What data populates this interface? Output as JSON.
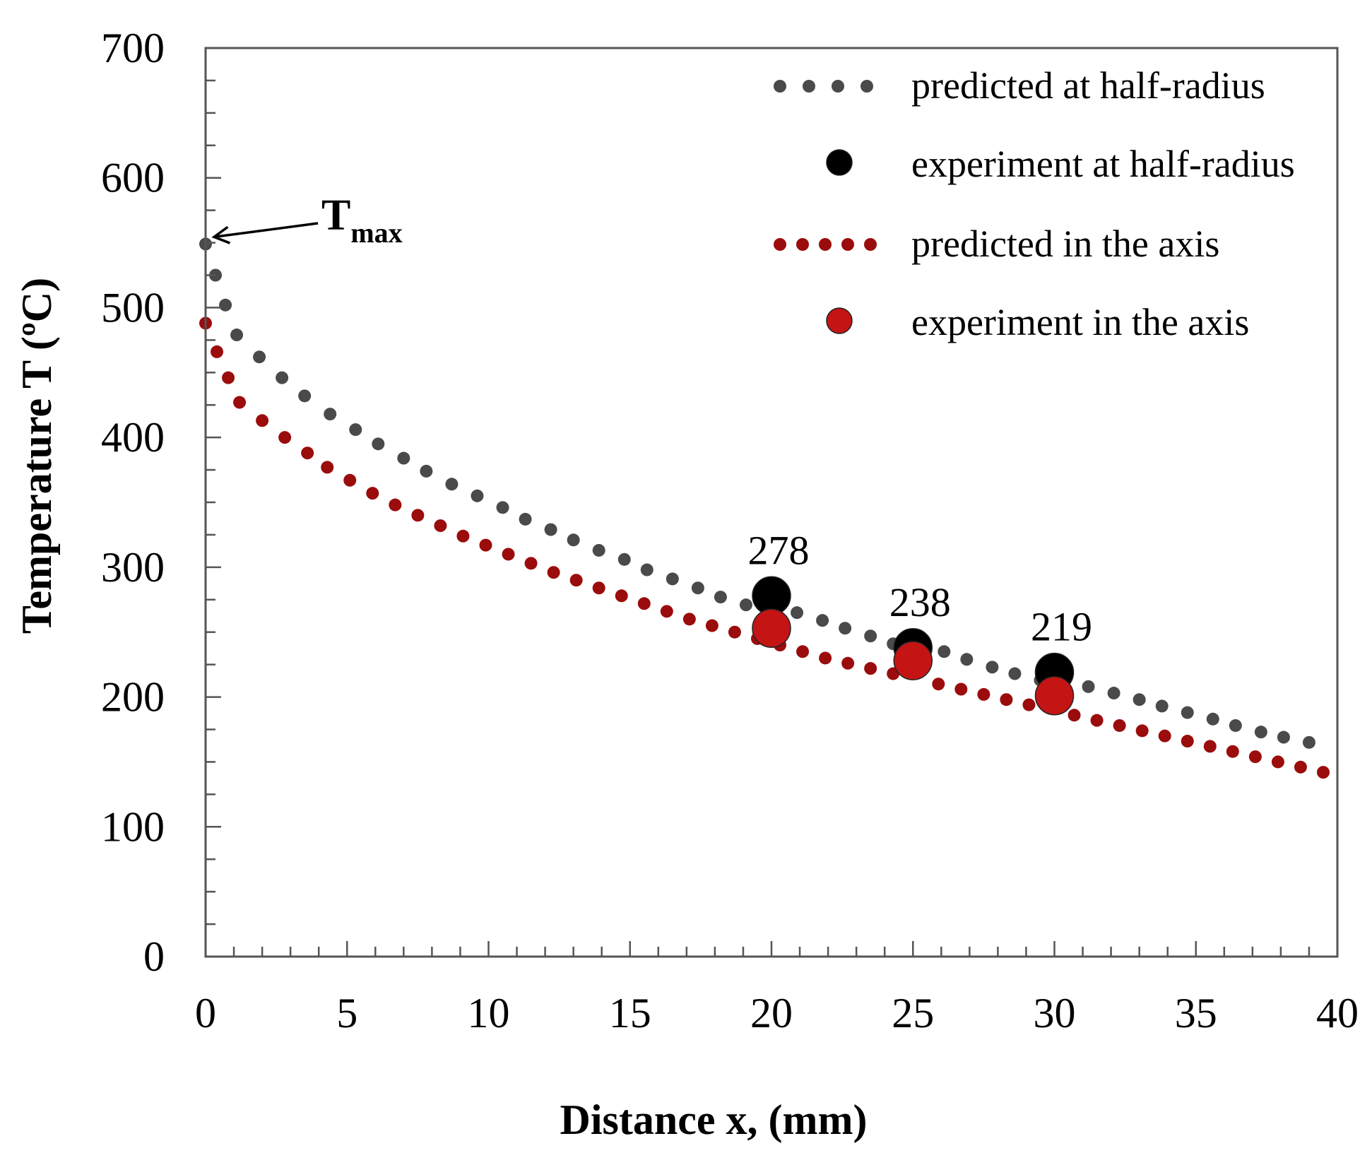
{
  "chart_data": {
    "type": "scatter",
    "title": "",
    "xlabel": "Distance  x, (mm)",
    "ylabel": "Temperature   T (ºC)",
    "xlim": [
      0,
      40
    ],
    "ylim": [
      0,
      700
    ],
    "x_ticks": [
      0,
      5,
      10,
      15,
      20,
      25,
      30,
      35,
      40
    ],
    "y_ticks": [
      0,
      100,
      200,
      300,
      400,
      500,
      600,
      700
    ],
    "x_minor_step": 1,
    "y_minor_step": 25,
    "grid": false,
    "legend_position": "top-right",
    "series": [
      {
        "name": "predicted at half-radius",
        "style": "dotted",
        "color": "#4a4a4a",
        "x": [
          0,
          0.35,
          0.7,
          1.1,
          1.9,
          2.7,
          3.5,
          4.4,
          5.3,
          6.1,
          7.0,
          7.8,
          8.7,
          9.6,
          10.5,
          11.3,
          12.2,
          13.0,
          13.9,
          14.8,
          15.6,
          16.5,
          17.4,
          18.2,
          19.1,
          20.9,
          21.8,
          22.6,
          23.5,
          24.3,
          26.1,
          26.9,
          27.8,
          28.6,
          29.5,
          31.2,
          32.1,
          33.0,
          33.8,
          34.7,
          35.6,
          36.4,
          37.3,
          38.1,
          39.0
        ],
        "y": [
          549,
          525,
          502,
          479,
          462,
          446,
          432,
          418,
          406,
          395,
          384,
          374,
          364,
          355,
          346,
          337,
          329,
          321,
          313,
          306,
          298,
          291,
          284,
          277,
          271,
          265,
          259,
          253,
          247,
          241,
          235,
          229,
          223,
          218,
          213,
          208,
          203,
          198,
          193,
          188,
          183,
          178,
          173,
          169,
          165
        ]
      },
      {
        "name": "experiment at half-radius",
        "style": "marker",
        "color": "#000000",
        "x": [
          20,
          25,
          30
        ],
        "y": [
          278,
          238,
          219
        ],
        "labels": [
          "278",
          "238",
          "219"
        ]
      },
      {
        "name": "predicted in the axis",
        "style": "dotted",
        "color": "#9b0c0c",
        "x": [
          0,
          0.4,
          0.8,
          1.2,
          2.0,
          2.8,
          3.6,
          4.3,
          5.1,
          5.9,
          6.7,
          7.5,
          8.3,
          9.1,
          9.9,
          10.7,
          11.5,
          12.3,
          13.1,
          13.9,
          14.7,
          15.5,
          16.3,
          17.1,
          17.9,
          18.7,
          19.5,
          20.3,
          21.1,
          21.9,
          22.7,
          23.5,
          24.3,
          25.9,
          26.7,
          27.5,
          28.3,
          29.1,
          30.7,
          31.5,
          32.3,
          33.1,
          33.9,
          34.7,
          35.5,
          36.3,
          37.1,
          37.9,
          38.7,
          39.5
        ],
        "y": [
          488,
          466,
          446,
          427,
          413,
          400,
          388,
          377,
          367,
          357,
          348,
          340,
          332,
          324,
          317,
          310,
          303,
          296,
          290,
          284,
          278,
          272,
          266,
          260,
          255,
          250,
          245,
          240,
          235,
          230,
          226,
          222,
          218,
          210,
          206,
          202,
          198,
          194,
          186,
          182,
          178,
          174,
          170,
          166,
          162,
          158,
          154,
          150,
          146,
          142
        ]
      },
      {
        "name": "experiment in the axis",
        "style": "marker",
        "color": "#c41414",
        "x": [
          20,
          25,
          30
        ],
        "y": [
          253,
          228,
          201
        ]
      }
    ],
    "annotations": [
      {
        "text_main": "T",
        "text_sub": "max",
        "points_to": [
          0,
          549
        ]
      }
    ]
  }
}
